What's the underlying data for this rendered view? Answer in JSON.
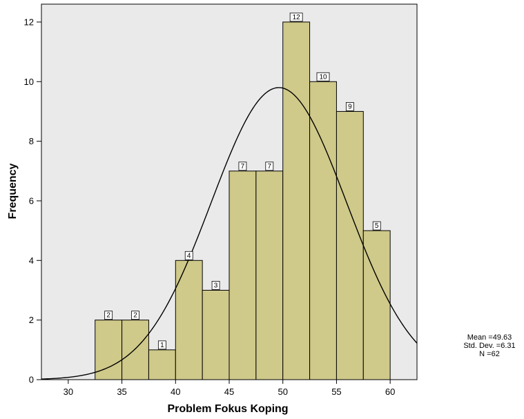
{
  "chart_data": {
    "type": "bar",
    "xlabel": "Problem Fokus Koping",
    "ylabel": "Frequency",
    "bin_width": 2.5,
    "bins": [
      {
        "center": 33.75,
        "value": 2
      },
      {
        "center": 36.25,
        "value": 2
      },
      {
        "center": 38.75,
        "value": 1
      },
      {
        "center": 41.25,
        "value": 4
      },
      {
        "center": 43.75,
        "value": 3
      },
      {
        "center": 46.25,
        "value": 7
      },
      {
        "center": 48.75,
        "value": 7
      },
      {
        "center": 51.25,
        "value": 12
      },
      {
        "center": 53.75,
        "value": 10
      },
      {
        "center": 56.25,
        "value": 9
      },
      {
        "center": 58.75,
        "value": 5
      }
    ],
    "xticks": [
      "30",
      "35",
      "40",
      "45",
      "50",
      "55",
      "60"
    ],
    "yticks": [
      "0",
      "2",
      "4",
      "6",
      "8",
      "10",
      "12"
    ],
    "xlim": [
      27.5,
      62.5
    ],
    "ylim": [
      0,
      12.6
    ],
    "normal_curve": {
      "mean": 49.63,
      "sd": 6.31,
      "n": 62
    },
    "stats": {
      "mean": "Mean =49.63",
      "sd": "Std. Dev. =6.31",
      "n": "N =62"
    },
    "colors": {
      "bar_fill": "#cfc98a",
      "plot_bg": "#eaeaea",
      "curve": "#000000"
    }
  }
}
